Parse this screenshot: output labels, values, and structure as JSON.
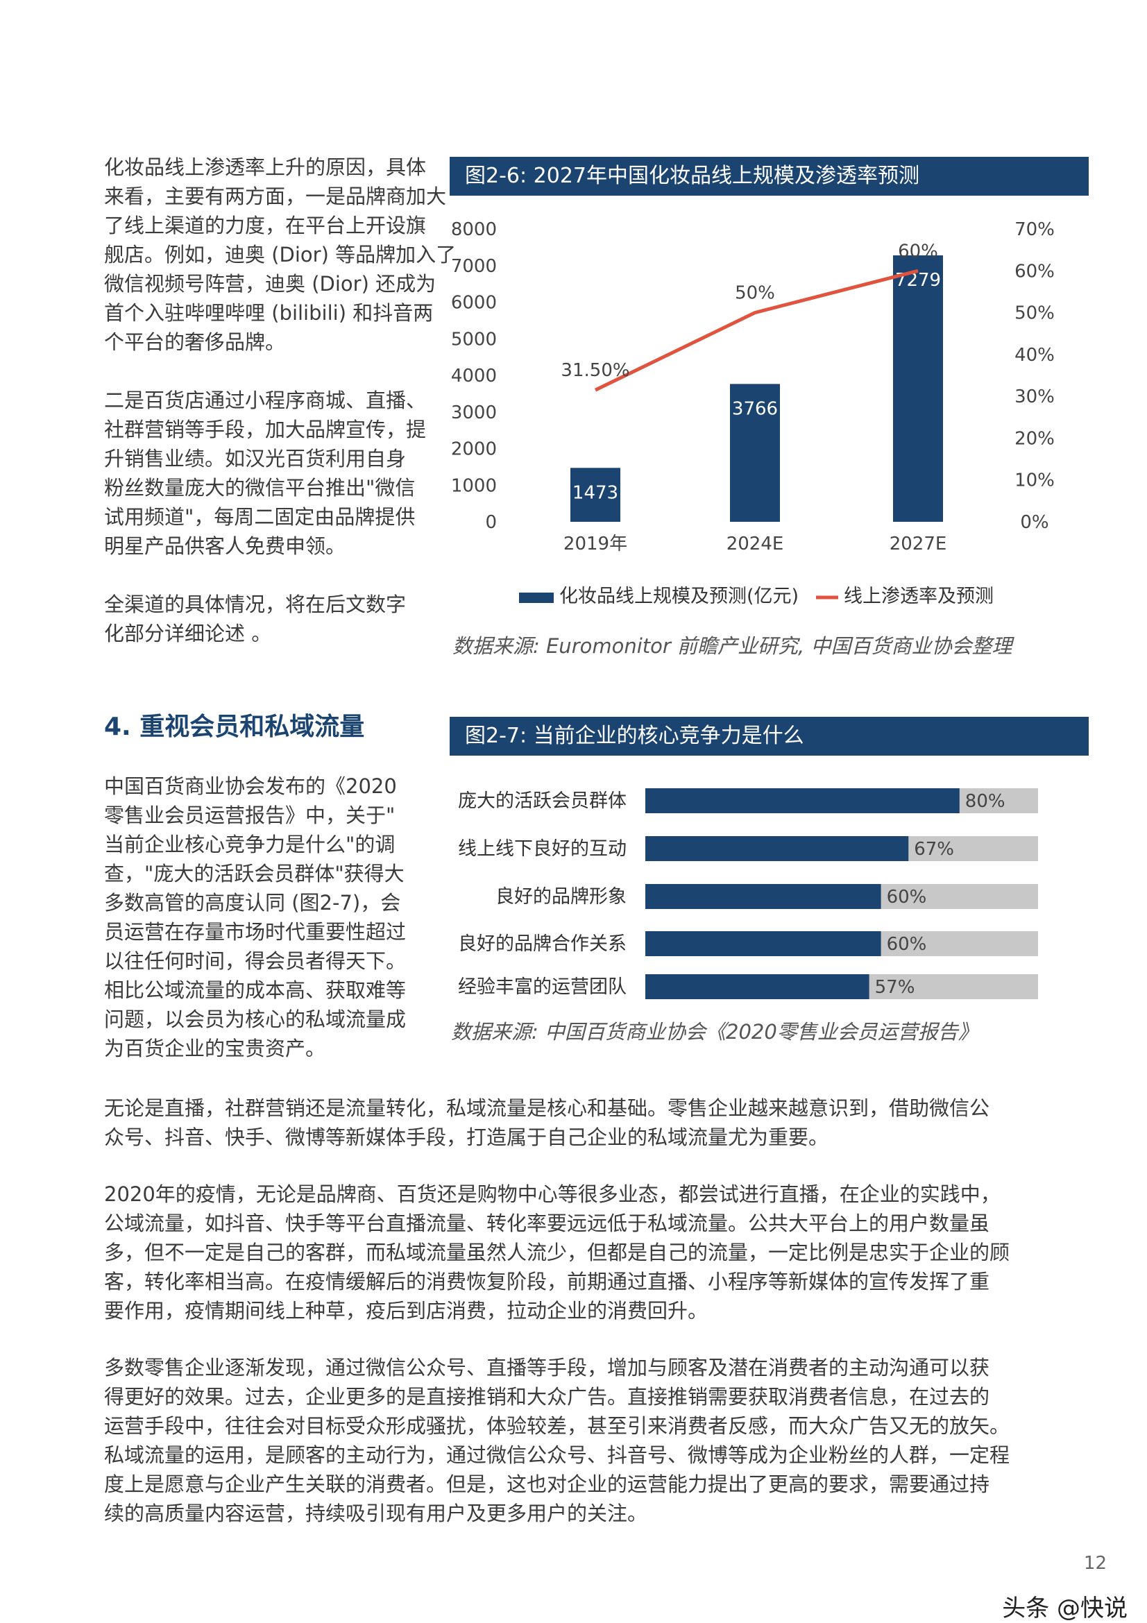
{
  "left_col": {
    "p1": "化妆品线上渗透率上升的原因，具体\n来看，主要有两方面，一是品牌商加大\n了线上渠道的力度，在平台上开设旗\n舰店。例如，迪奥 (Dior) 等品牌加入了\n微信视频号阵营，迪奥 (Dior) 还成为\n首个入驻哔哩哔哩 (bilibili) 和抖音两\n个平台的奢侈品牌。",
    "p2": "二是百货店通过小程序商城、直播、\n社群营销等手段，加大品牌宣传，提\n升销售业绩。如汉光百货利用自身\n粉丝数量庞大的微信平台推出\"微信\n试用频道\"，每周二固定由品牌提供\n明星产品供客人免费申领。",
    "p3": "全渠道的具体情况，将在后文数字\n化部分详细论述 。",
    "heading": "4. 重视会员和私域流量",
    "p4": "中国百货商业协会发布的《2020\n零售业会员运营报告》中，关于\"\n当前企业核心竞争力是什么\"的调\n查，\"庞大的活跃会员群体\"获得大\n多数高管的高度认同 (图2-7)，会\n员运营在存量市场时代重要性超过\n以往任何时间，得会员者得天下。\n相比公域流量的成本高、获取难等\n问题，以会员为核心的私域流量成\n为百货企业的宝贵资产。"
  },
  "body": {
    "p5": "无论是直播，社群营销还是流量转化，私域流量是核心和基础。零售企业越来越意识到，借助微信公\n众号、抖音、快手、微博等新媒体手段，打造属于自己企业的私域流量尤为重要。",
    "p6": "2020年的疫情，无论是品牌商、百货还是购物中心等很多业态，都尝试进行直播，在企业的实践中，\n公域流量，如抖音、快手等平台直播流量、转化率要远远低于私域流量。公共大平台上的用户数量虽\n多，但不一定是自己的客群，而私域流量虽然人流少，但都是自己的流量，一定比例是忠实于企业的顾\n客，转化率相当高。在疫情缓解后的消费恢复阶段，前期通过直播、小程序等新媒体的宣传发挥了重\n要作用，疫情期间线上种草，疫后到店消费，拉动企业的消费回升。",
    "p7": "多数零售企业逐渐发现，通过微信公众号、直播等手段，增加与顾客及潜在消费者的主动沟通可以获\n得更好的效果。过去，企业更多的是直接推销和大众广告。直接推销需要获取消费者信息，在过去的\n运营手段中，往往会对目标受众形成骚扰，体验较差，甚至引来消费者反感，而大众广告又无的放矢。\n私域流量的运用，是顾客的主动行为，通过微信公众号、抖音号、微博等成为企业粉丝的人群，一定程\n度上是愿意与企业产生关联的消费者。但是，这也对企业的运营能力提出了更高的要求，需要通过持\n续的高质量内容运营，持续吸引现有用户及更多用户的关注。"
  },
  "figures": {
    "fig1_title": "图2-6: 2027年中国化妆品线上规模及渗透率预测",
    "fig1_source": "数据来源: Euromonitor 前瞻产业研究, 中国百货商业协会整理",
    "fig2_title": "图2-7: 当前企业的核心竞争力是什么",
    "fig2_source": "数据来源: 中国百货商业协会《2020零售业会员运营报告》"
  },
  "chart_data": [
    {
      "type": "bar",
      "categories": [
        "2019年",
        "2024E",
        "2027E"
      ],
      "series": [
        {
          "name": "化妆品线上规模及预测(亿元)",
          "type": "bar",
          "values": [
            1473,
            3766,
            7279
          ],
          "color": "#1c4471",
          "labels": [
            "1473",
            "3766",
            "7279"
          ]
        },
        {
          "name": "线上渗透率及预测",
          "type": "line",
          "values": [
            31.5,
            50,
            60
          ],
          "color": "#e0533e",
          "labels": [
            "31.50%",
            "50%",
            "60%"
          ]
        }
      ],
      "ylim": [
        0,
        8000
      ],
      "yticks": [
        "0",
        "1000",
        "2000",
        "3000",
        "4000",
        "5000",
        "6000",
        "7000",
        "8000"
      ],
      "y2lim": [
        0,
        70
      ],
      "y2ticks": [
        "0%",
        "10%",
        "20%",
        "30%",
        "40%",
        "50%",
        "60%",
        "70%"
      ],
      "legend_position": "bottom"
    },
    {
      "type": "bar",
      "orientation": "horizontal",
      "categories": [
        "庞大的活跃会员群体",
        "线上线下良好的互动",
        "良好的品牌形象",
        "良好的品牌合作关系",
        "经验丰富的运营团队"
      ],
      "values": [
        80,
        67,
        60,
        60,
        57
      ],
      "labels": [
        "80%",
        "67%",
        "60%",
        "60%",
        "57%"
      ],
      "xlim": [
        0,
        100
      ],
      "bar_color": "#1c4471",
      "track_color": "#c8c8c8"
    }
  ],
  "footer": {
    "page_number": "12",
    "watermark": "头条 @快说"
  }
}
